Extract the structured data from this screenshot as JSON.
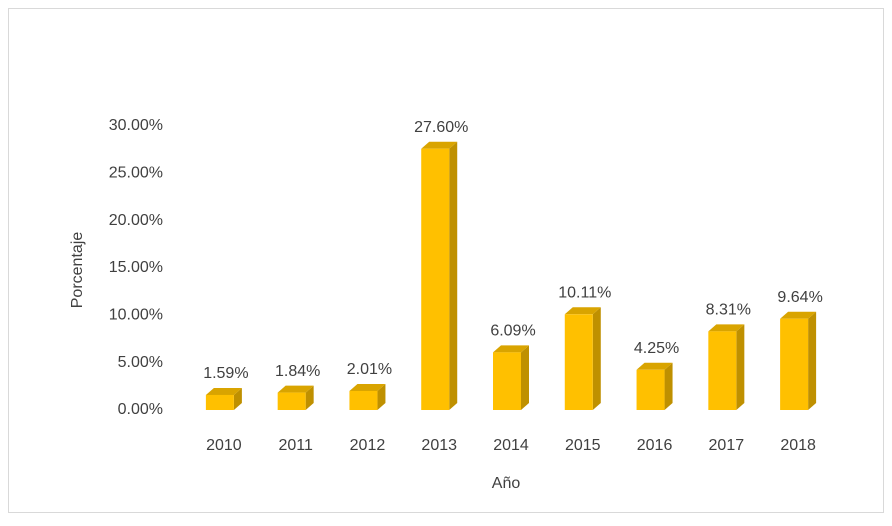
{
  "chart_data": {
    "type": "bar",
    "categories": [
      "2010",
      "2011",
      "2012",
      "2013",
      "2014",
      "2015",
      "2016",
      "2017",
      "2018"
    ],
    "values": [
      1.59,
      1.84,
      2.01,
      27.6,
      6.09,
      10.11,
      4.25,
      8.31,
      9.64
    ],
    "value_labels": [
      "1.59%",
      "1.84%",
      "2.01%",
      "27.60%",
      "6.09%",
      "10.11%",
      "4.25%",
      "8.31%",
      "9.64%"
    ],
    "color": "#ffc000",
    "ylim": [
      0,
      30
    ],
    "yticks": [
      {
        "value": 0,
        "label": "0.00%"
      },
      {
        "value": 5,
        "label": "5.00%"
      },
      {
        "value": 10,
        "label": "10.00%"
      },
      {
        "value": 15,
        "label": "15.00%"
      },
      {
        "value": 20,
        "label": "20.00%"
      },
      {
        "value": 25,
        "label": "25.00%"
      },
      {
        "value": 30,
        "label": "30.00%"
      }
    ],
    "x_label": "Año",
    "y_label": "Porcentaje"
  }
}
